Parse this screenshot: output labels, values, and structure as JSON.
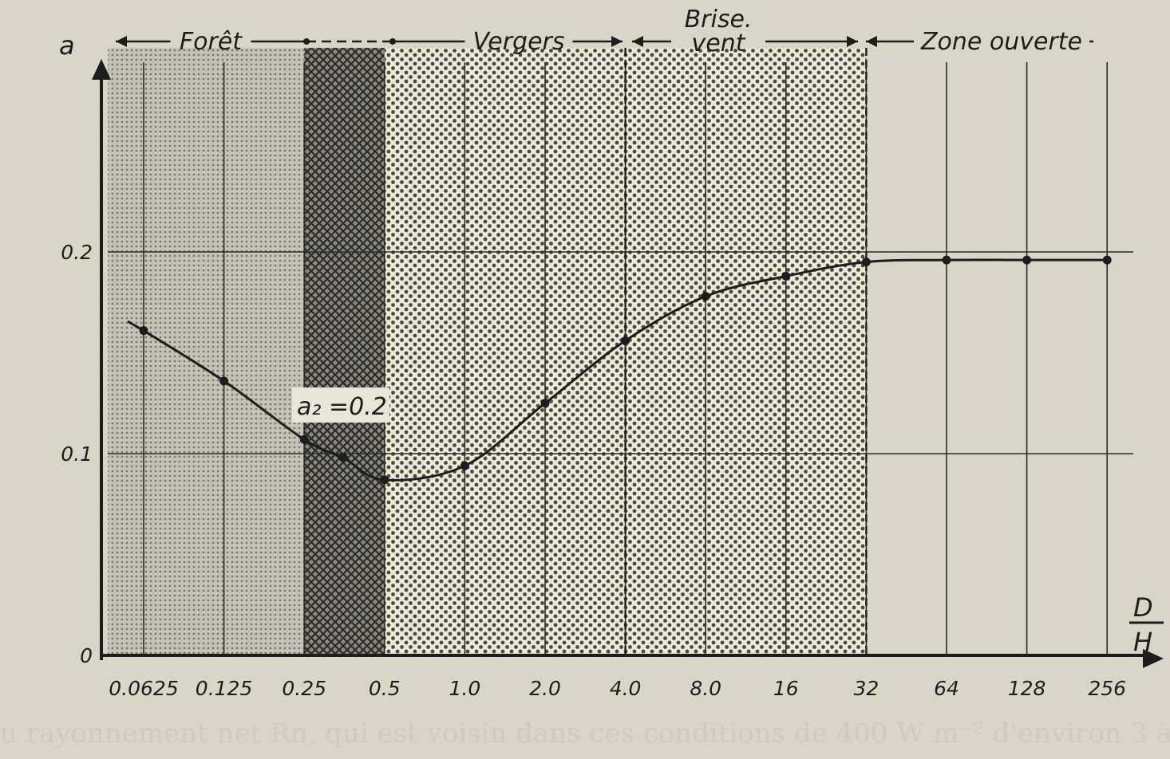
{
  "chart_data": {
    "type": "line",
    "xlabel_num": "D",
    "xlabel_den": "H",
    "ylabel": "a",
    "x_scale": "log2",
    "ylim": [
      0,
      0.2
    ],
    "x_ticks": [
      "0.0625",
      "0.125",
      "0.25",
      "0.5",
      "1.0",
      "2.0",
      "4.0",
      "8.0",
      "16",
      "32",
      "64",
      "128",
      "256"
    ],
    "y_ticks": [
      "0",
      "0.1",
      "0.2"
    ],
    "grid": true,
    "series": [
      {
        "x": [
          0.0625,
          0.125,
          0.25,
          0.35,
          0.5,
          1.0,
          2.0,
          4.0,
          8.0,
          16,
          32,
          64,
          128,
          256
        ],
        "y": [
          0.161,
          0.136,
          0.107,
          0.098,
          0.087,
          0.094,
          0.125,
          0.156,
          0.178,
          0.188,
          0.195,
          0.196,
          0.196,
          0.196
        ]
      }
    ],
    "zones": [
      {
        "label": "Forêt",
        "from": 0.04,
        "to": 0.25,
        "pattern": "fine"
      },
      {
        "label": "",
        "from": 0.25,
        "to": 0.5,
        "pattern": "cross"
      },
      {
        "label": "Vergers",
        "from": 0.5,
        "to": 4.0,
        "pattern": "dots"
      },
      {
        "label": "Brise.",
        "label2": "vent",
        "from": 4.0,
        "to": 32,
        "pattern": "dots"
      },
      {
        "label": "Zone ouverte",
        "from": 32,
        "to": 256,
        "pattern": "none"
      }
    ],
    "annotation": "a₂ =0.2"
  },
  "footer": "u rayonnement net Rn, qui est voisin dans ces conditions de 400 W m⁻² d'environ 3 à"
}
